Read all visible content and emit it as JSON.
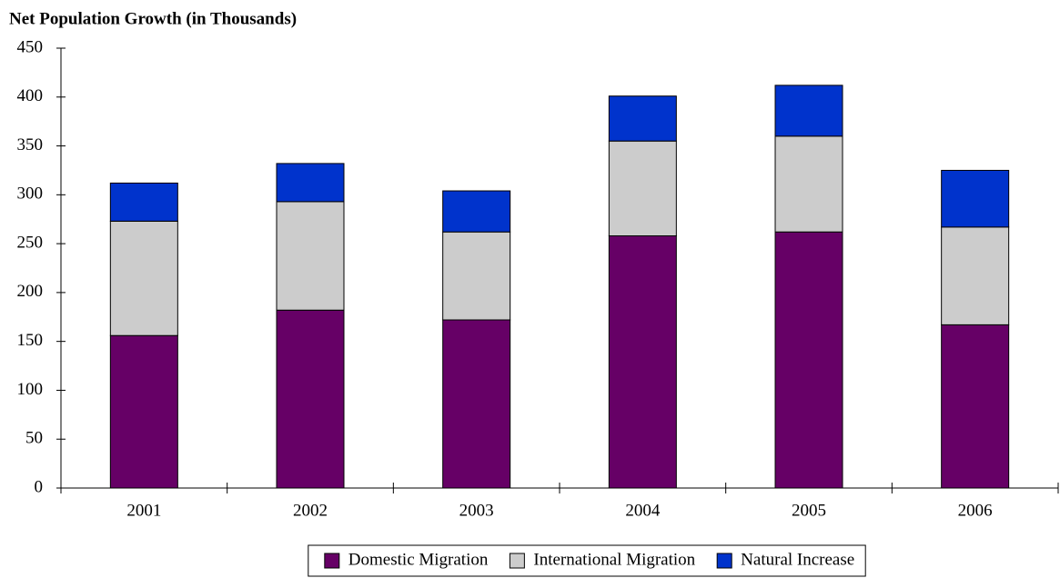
{
  "chart_data": {
    "type": "stacked_bar",
    "title": "Net Population Growth (in Thousands)",
    "categories": [
      "2001",
      "2002",
      "2003",
      "2004",
      "2005",
      "2006"
    ],
    "series": [
      {
        "name": "Domestic Migration",
        "color": "#660066",
        "values": [
          156,
          182,
          172,
          258,
          262,
          167
        ]
      },
      {
        "name": "International Migration",
        "color": "#cccccc",
        "values": [
          117,
          111,
          90,
          97,
          98,
          100
        ]
      },
      {
        "name": "Natural Increase",
        "color": "#0033cc",
        "values": [
          39,
          39,
          42,
          46,
          52,
          58
        ]
      }
    ],
    "ylim": [
      0,
      450
    ],
    "yticks": [
      0,
      50,
      100,
      150,
      200,
      250,
      300,
      350,
      400,
      450
    ],
    "grid": false,
    "legend": "bottom"
  }
}
